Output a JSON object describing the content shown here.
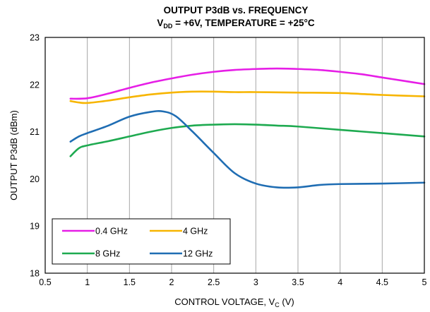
{
  "chart_data": {
    "type": "line",
    "title": "OUTPUT P3dB vs. FREQUENCY",
    "subtitle": {
      "prefix": "V",
      "subscript": "DD",
      "suffix": " = +6V, TEMPERATURE = +25°C"
    },
    "xlabel": {
      "prefix": "CONTROL VOLTAGE, V",
      "subscript": "C",
      "suffix": " (V)"
    },
    "ylabel": "OUTPUT P3dB (dBm)",
    "xlim": [
      0.5,
      5
    ],
    "ylim": [
      18,
      23
    ],
    "xticks": [
      "0.5",
      "1",
      "1.5",
      "2",
      "2.5",
      "3",
      "3.5",
      "4",
      "4.5",
      "5"
    ],
    "yticks": [
      "18",
      "19",
      "20",
      "21",
      "22",
      "23"
    ],
    "grid": "vertical",
    "legend_position": "bottom-left",
    "series": [
      {
        "name": "0.4 GHz",
        "color": "#e61ee6",
        "x": [
          0.8,
          1.0,
          1.25,
          1.5,
          1.75,
          2.0,
          2.25,
          2.5,
          2.75,
          3.0,
          3.25,
          3.5,
          3.75,
          4.0,
          4.25,
          4.5,
          4.75,
          5.0
        ],
        "y": [
          21.7,
          21.71,
          21.81,
          21.93,
          22.04,
          22.13,
          22.21,
          22.27,
          22.31,
          22.33,
          22.34,
          22.33,
          22.31,
          22.27,
          22.22,
          22.15,
          22.08,
          22.01
        ]
      },
      {
        "name": "4 GHz",
        "color": "#f7b500",
        "x": [
          0.8,
          0.9,
          1.0,
          1.25,
          1.5,
          1.75,
          2.0,
          2.25,
          2.5,
          2.75,
          3.0,
          3.5,
          4.0,
          4.5,
          5.0
        ],
        "y": [
          21.65,
          21.62,
          21.61,
          21.66,
          21.73,
          21.79,
          21.83,
          21.85,
          21.85,
          21.84,
          21.84,
          21.83,
          21.82,
          21.78,
          21.75
        ]
      },
      {
        "name": "8 GHz",
        "color": "#1eaa50",
        "x": [
          0.8,
          0.9,
          1.0,
          1.25,
          1.5,
          1.75,
          2.0,
          2.25,
          2.5,
          2.75,
          3.0,
          3.25,
          3.5,
          4.0,
          4.5,
          5.0
        ],
        "y": [
          20.48,
          20.65,
          20.71,
          20.8,
          20.9,
          21.0,
          21.08,
          21.13,
          21.15,
          21.16,
          21.15,
          21.13,
          21.11,
          21.04,
          20.97,
          20.9
        ]
      },
      {
        "name": "12 GHz",
        "color": "#1f6db3",
        "x": [
          0.8,
          0.9,
          1.0,
          1.25,
          1.5,
          1.75,
          1.9,
          2.05,
          2.25,
          2.5,
          2.75,
          3.0,
          3.25,
          3.5,
          3.75,
          4.0,
          4.5,
          5.0
        ],
        "y": [
          20.79,
          20.9,
          20.97,
          21.13,
          21.32,
          21.42,
          21.43,
          21.33,
          21.0,
          20.55,
          20.12,
          19.9,
          19.82,
          19.82,
          19.87,
          19.89,
          19.9,
          19.92
        ]
      }
    ]
  }
}
